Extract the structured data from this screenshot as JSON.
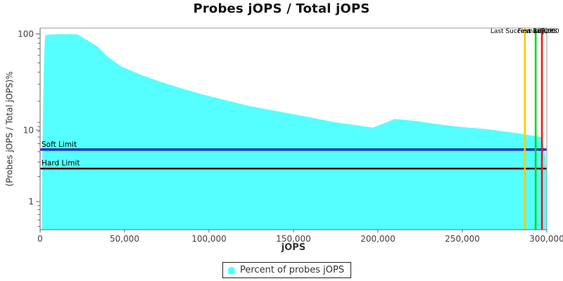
{
  "title": "Probes jOPS / Total jOPS",
  "axes": {
    "x_label": "jOPS",
    "y_label": "(Probes jOPS / Total jOPS)%"
  },
  "legend": {
    "label": "Percent of probes jOPS",
    "swatch_color": "#55ffff",
    "position": "bottom-center"
  },
  "colors": {
    "area": "#55ffff",
    "soft_limit": "#1f1fff",
    "hard_limit": "#151515",
    "marker_yellow": "#ffc800",
    "marker_green": "#00dd00",
    "marker_red": "#ff1111",
    "frame": "#999999",
    "axis": "#666666",
    "tick_text": "#404040"
  },
  "chart_data": {
    "type": "area",
    "title": "Probes jOPS / Total jOPS",
    "xlabel": "jOPS",
    "ylabel": "(Probes jOPS / Total jOPS)%",
    "x_scale": "linear",
    "y_scale": "log",
    "xlim": [
      0,
      300000
    ],
    "ylim": [
      0.4,
      115
    ],
    "grid": false,
    "x_tick_values": [
      0,
      50000,
      100000,
      150000,
      200000,
      250000,
      300000
    ],
    "x_tick_labels": [
      "0",
      "50,000",
      "100,000",
      "150,000",
      "200,000",
      "250,000",
      "300,000"
    ],
    "y_tick_values": [
      100,
      10,
      1
    ],
    "y_tick_labels": [
      "100",
      "10",
      "1"
    ],
    "y_minor_ticks": [
      90,
      80,
      70,
      60,
      50,
      40,
      30,
      20,
      9,
      8,
      7,
      6,
      5,
      4,
      3,
      2,
      0.9,
      0.8,
      0.7,
      0.6,
      0.5
    ],
    "series": [
      {
        "name": "Percent of probes jOPS",
        "color": "#55ffff",
        "points": [
          [
            1000,
            0.4
          ],
          [
            1200,
            2
          ],
          [
            1800,
            20
          ],
          [
            2400,
            60
          ],
          [
            3000,
            97
          ],
          [
            6000,
            98.8
          ],
          [
            12000,
            99.3
          ],
          [
            20000,
            99.5
          ],
          [
            22000,
            99.3
          ],
          [
            27000,
            88
          ],
          [
            33800,
            74.3
          ],
          [
            40000,
            58
          ],
          [
            48300,
            45.6
          ],
          [
            60000,
            37.5
          ],
          [
            72000,
            31.5
          ],
          [
            85000,
            26.8
          ],
          [
            97000,
            23.3
          ],
          [
            110000,
            20.5
          ],
          [
            122000,
            18.1
          ],
          [
            135000,
            16.4
          ],
          [
            147000,
            15.0
          ],
          [
            160000,
            13.6
          ],
          [
            172000,
            12.3
          ],
          [
            185000,
            11.4
          ],
          [
            197000,
            10.6
          ],
          [
            210000,
            9.9
          ],
          [
            222000,
            9.4
          ],
          [
            235000,
            8.6
          ],
          [
            247000,
            8.0
          ],
          [
            264000,
            7.5
          ],
          [
            275000,
            7.0
          ],
          [
            284500,
            6.6
          ],
          [
            290000,
            6.3
          ],
          [
            297000,
            6.0
          ],
          [
            298000,
            5.0
          ],
          [
            299000,
            3.6
          ],
          [
            300000,
            2.05
          ]
        ]
      }
    ],
    "h_lines": [
      {
        "label": "Soft Limit",
        "value": 4.2,
        "color": "#1f1fff"
      },
      {
        "label": "Hard Limit",
        "value": 2.5,
        "color": "#151515"
      }
    ],
    "v_lines": [
      {
        "label": "Last Success 287,000",
        "value": 287000,
        "color": "#ffc800"
      },
      {
        "label": "First Failure",
        "value": 293400,
        "color": "#00dd00"
      },
      {
        "label": "max jOPS",
        "value": 297100,
        "color": "#ff1111"
      }
    ],
    "legend": {
      "entries": [
        "Percent of probes jOPS"
      ],
      "position": "bottom"
    }
  }
}
